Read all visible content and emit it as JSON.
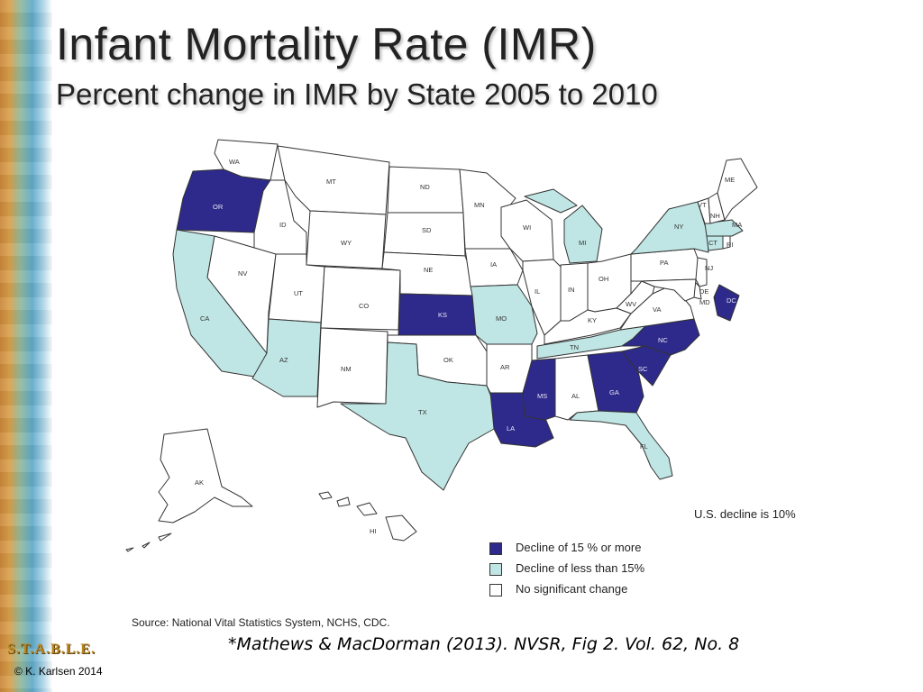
{
  "slide": {
    "title": "Infant Mortality Rate (IMR)",
    "subtitle": "Percent change in IMR by State 2005 to 2010",
    "us_decline": "U.S. decline is 10%",
    "source": "Source: National Vital Statistics System, NCHS, CDC.",
    "citation": "*Mathews & MacDorman (2013). NVSR, Fig 2. Vol. 62, No. 8",
    "logo": "S.T.A.B.L.E.",
    "copyright": "© K. Karlsen 2014"
  },
  "colors": {
    "decline_15_or_more": "#2e2a8c",
    "decline_less_15": "#bfe6e4",
    "no_change": "#ffffff"
  },
  "legend": [
    {
      "label": "Decline of 15 % or more",
      "category": "decline_15_or_more"
    },
    {
      "label": "Decline of less than 15%",
      "category": "decline_less_15"
    },
    {
      "label": "No significant change",
      "category": "no_change"
    }
  ],
  "states": {
    "WA": "no_change",
    "OR": "decline_15_or_more",
    "CA": "decline_less_15",
    "ID": "no_change",
    "NV": "no_change",
    "MT": "no_change",
    "WY": "no_change",
    "UT": "no_change",
    "AZ": "decline_less_15",
    "CO": "no_change",
    "NM": "no_change",
    "ND": "no_change",
    "SD": "no_change",
    "NE": "no_change",
    "KS": "decline_15_or_more",
    "OK": "no_change",
    "TX": "decline_less_15",
    "MN": "no_change",
    "IA": "no_change",
    "MO": "decline_less_15",
    "AR": "no_change",
    "LA": "decline_15_or_more",
    "WI": "no_change",
    "IL": "no_change",
    "MI": "decline_less_15",
    "IN": "no_change",
    "OH": "no_change",
    "KY": "no_change",
    "TN": "decline_less_15",
    "MS": "decline_15_or_more",
    "AL": "no_change",
    "GA": "decline_15_or_more",
    "FL": "decline_less_15",
    "SC": "decline_15_or_more",
    "NC": "decline_15_or_more",
    "VA": "no_change",
    "WV": "no_change",
    "PA": "no_change",
    "NY": "decline_less_15",
    "NJ": "no_change",
    "DE": "no_change",
    "MD": "no_change",
    "DC": "decline_15_or_more",
    "CT": "decline_less_15",
    "RI": "no_change",
    "MA": "decline_less_15",
    "VT": "no_change",
    "NH": "no_change",
    "ME": "no_change",
    "AK": "no_change",
    "HI": "no_change"
  }
}
